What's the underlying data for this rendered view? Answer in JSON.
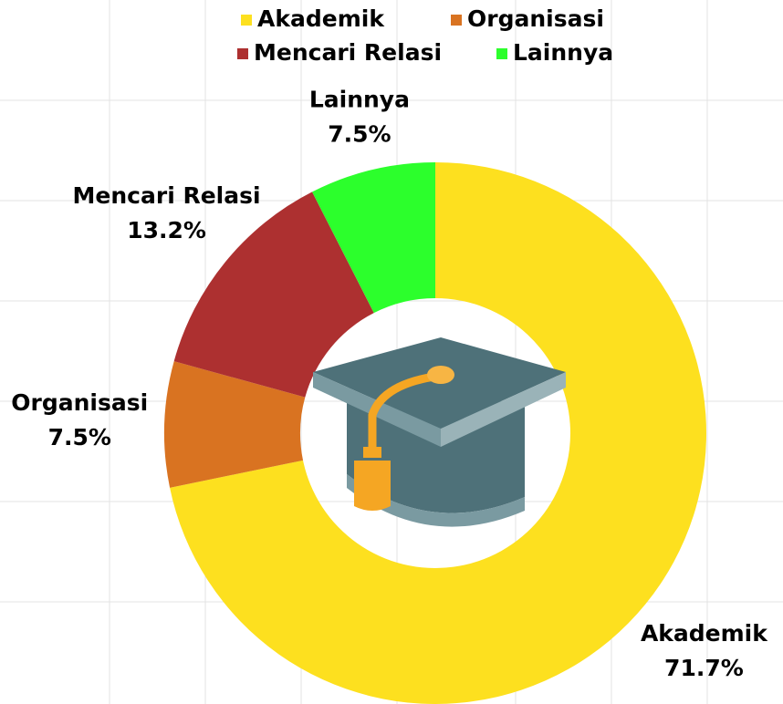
{
  "chart_data": {
    "type": "donut",
    "categories": [
      "Akademik",
      "Organisasi",
      "Mencari Relasi",
      "Lainnya"
    ],
    "values": [
      71.7,
      7.5,
      13.2,
      7.5
    ],
    "value_labels": [
      "71.7%",
      "7.5%",
      "13.2%",
      "7.5%"
    ],
    "colors": [
      "#fde01f",
      "#d97321",
      "#ad3030",
      "#2cff2c"
    ],
    "legend": "top"
  }
}
